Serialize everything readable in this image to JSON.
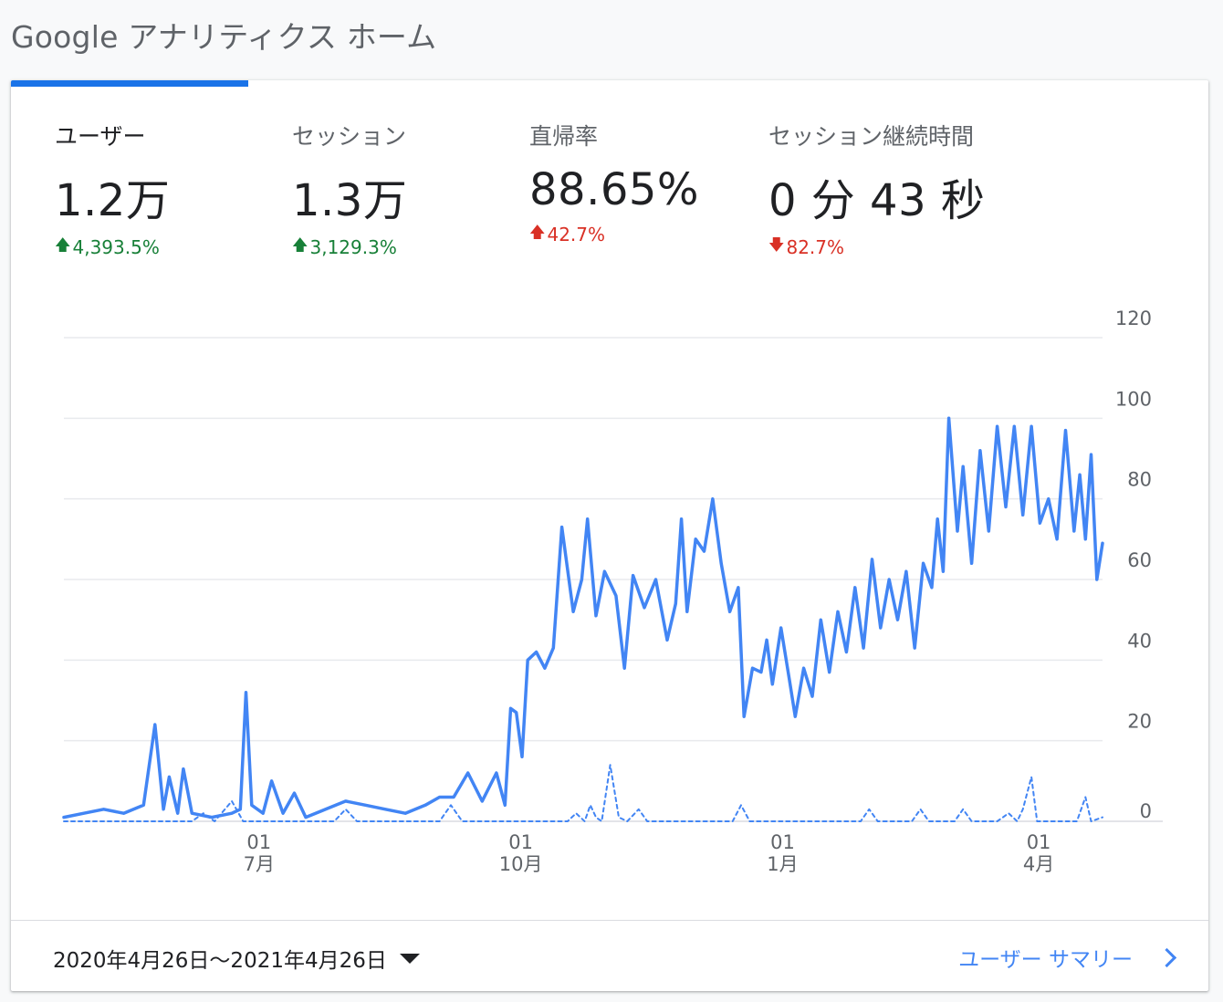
{
  "page": {
    "title": "Google アナリティクス ホーム"
  },
  "metrics": [
    {
      "label": "ユーザー",
      "value": "1.2万",
      "change": "4,393.5%",
      "direction": "up",
      "sentiment": "good"
    },
    {
      "label": "セッション",
      "value": "1.3万",
      "change": "3,129.3%",
      "direction": "up",
      "sentiment": "good"
    },
    {
      "label": "直帰率",
      "value": "88.65%",
      "change": "42.7%",
      "direction": "up",
      "sentiment": "bad"
    },
    {
      "label": "セッション継続時間",
      "value": "0 分 43 秒",
      "change": "82.7%",
      "direction": "down",
      "sentiment": "bad"
    }
  ],
  "colors": {
    "accent": "#1a73e8",
    "series": "#4285f4",
    "positive": "#188038",
    "negative": "#d93025"
  },
  "footer": {
    "date_range": "2020年4月26日～2021年4月26日",
    "summary_link": "ユーザー サマリー",
    "caret_icon": "dropdown-caret-icon",
    "chevron_icon": "chevron-right-icon"
  },
  "chart_data": {
    "type": "line",
    "x_range": [
      "2020-04-26",
      "2021-04-26"
    ],
    "ylim": [
      0,
      120
    ],
    "y_ticks": [
      0,
      20,
      40,
      60,
      80,
      100,
      120
    ],
    "y_axis_position": "right",
    "grid": true,
    "x_ticks": [
      {
        "date": "2020-07-01",
        "day": "01",
        "month": "7月"
      },
      {
        "date": "2020-10-01",
        "day": "01",
        "month": "10月"
      },
      {
        "date": "2021-01-01",
        "day": "01",
        "month": "1月"
      },
      {
        "date": "2021-04-01",
        "day": "01",
        "month": "4月"
      }
    ],
    "series": [
      {
        "style": "solid",
        "points": [
          [
            "2020-04-26",
            1
          ],
          [
            "2020-05-03",
            2
          ],
          [
            "2020-05-10",
            3
          ],
          [
            "2020-05-17",
            2
          ],
          [
            "2020-05-24",
            4
          ],
          [
            "2020-05-28",
            24
          ],
          [
            "2020-05-31",
            3
          ],
          [
            "2020-06-02",
            11
          ],
          [
            "2020-06-05",
            2
          ],
          [
            "2020-06-07",
            13
          ],
          [
            "2020-06-10",
            2
          ],
          [
            "2020-06-17",
            1
          ],
          [
            "2020-06-24",
            2
          ],
          [
            "2020-06-27",
            3
          ],
          [
            "2020-06-29",
            32
          ],
          [
            "2020-07-01",
            4
          ],
          [
            "2020-07-05",
            2
          ],
          [
            "2020-07-08",
            10
          ],
          [
            "2020-07-12",
            2
          ],
          [
            "2020-07-16",
            7
          ],
          [
            "2020-07-20",
            1
          ],
          [
            "2020-07-27",
            3
          ],
          [
            "2020-08-03",
            5
          ],
          [
            "2020-08-10",
            4
          ],
          [
            "2020-08-17",
            3
          ],
          [
            "2020-08-24",
            2
          ],
          [
            "2020-08-31",
            4
          ],
          [
            "2020-09-05",
            6
          ],
          [
            "2020-09-10",
            6
          ],
          [
            "2020-09-15",
            12
          ],
          [
            "2020-09-20",
            5
          ],
          [
            "2020-09-25",
            12
          ],
          [
            "2020-09-28",
            4
          ],
          [
            "2020-09-30",
            28
          ],
          [
            "2020-10-02",
            27
          ],
          [
            "2020-10-04",
            16
          ],
          [
            "2020-10-06",
            40
          ],
          [
            "2020-10-09",
            42
          ],
          [
            "2020-10-12",
            38
          ],
          [
            "2020-10-15",
            43
          ],
          [
            "2020-10-18",
            73
          ],
          [
            "2020-10-22",
            52
          ],
          [
            "2020-10-25",
            60
          ],
          [
            "2020-10-27",
            75
          ],
          [
            "2020-10-30",
            51
          ],
          [
            "2020-11-02",
            62
          ],
          [
            "2020-11-06",
            56
          ],
          [
            "2020-11-09",
            38
          ],
          [
            "2020-11-12",
            61
          ],
          [
            "2020-11-16",
            53
          ],
          [
            "2020-11-20",
            60
          ],
          [
            "2020-11-24",
            45
          ],
          [
            "2020-11-27",
            54
          ],
          [
            "2020-11-29",
            75
          ],
          [
            "2020-12-01",
            52
          ],
          [
            "2020-12-04",
            70
          ],
          [
            "2020-12-07",
            67
          ],
          [
            "2020-12-10",
            80
          ],
          [
            "2020-12-13",
            64
          ],
          [
            "2020-12-16",
            52
          ],
          [
            "2020-12-19",
            58
          ],
          [
            "2020-12-21",
            26
          ],
          [
            "2020-12-24",
            38
          ],
          [
            "2020-12-27",
            37
          ],
          [
            "2020-12-29",
            45
          ],
          [
            "2020-12-31",
            34
          ],
          [
            "2021-01-03",
            48
          ],
          [
            "2021-01-06",
            35
          ],
          [
            "2021-01-08",
            26
          ],
          [
            "2021-01-11",
            38
          ],
          [
            "2021-01-14",
            31
          ],
          [
            "2021-01-17",
            50
          ],
          [
            "2021-01-20",
            37
          ],
          [
            "2021-01-23",
            52
          ],
          [
            "2021-01-26",
            42
          ],
          [
            "2021-01-29",
            58
          ],
          [
            "2021-02-01",
            43
          ],
          [
            "2021-02-04",
            65
          ],
          [
            "2021-02-07",
            48
          ],
          [
            "2021-02-10",
            60
          ],
          [
            "2021-02-13",
            50
          ],
          [
            "2021-02-16",
            62
          ],
          [
            "2021-02-19",
            43
          ],
          [
            "2021-02-22",
            64
          ],
          [
            "2021-02-25",
            58
          ],
          [
            "2021-02-27",
            75
          ],
          [
            "2021-03-01",
            62
          ],
          [
            "2021-03-03",
            100
          ],
          [
            "2021-03-06",
            72
          ],
          [
            "2021-03-08",
            88
          ],
          [
            "2021-03-11",
            64
          ],
          [
            "2021-03-14",
            92
          ],
          [
            "2021-03-17",
            72
          ],
          [
            "2021-03-20",
            98
          ],
          [
            "2021-03-23",
            78
          ],
          [
            "2021-03-26",
            98
          ],
          [
            "2021-03-29",
            76
          ],
          [
            "2021-04-01",
            98
          ],
          [
            "2021-04-04",
            74
          ],
          [
            "2021-04-07",
            80
          ],
          [
            "2021-04-10",
            70
          ],
          [
            "2021-04-13",
            97
          ],
          [
            "2021-04-16",
            72
          ],
          [
            "2021-04-18",
            86
          ],
          [
            "2021-04-20",
            70
          ],
          [
            "2021-04-22",
            91
          ],
          [
            "2021-04-24",
            60
          ],
          [
            "2021-04-26",
            69
          ]
        ]
      },
      {
        "style": "dashed",
        "points": [
          [
            "2020-04-26",
            0
          ],
          [
            "2020-06-10",
            0
          ],
          [
            "2020-06-14",
            2
          ],
          [
            "2020-06-18",
            0
          ],
          [
            "2020-06-24",
            5
          ],
          [
            "2020-06-28",
            0
          ],
          [
            "2020-07-30",
            0
          ],
          [
            "2020-08-03",
            3
          ],
          [
            "2020-08-07",
            0
          ],
          [
            "2020-09-05",
            0
          ],
          [
            "2020-09-09",
            4
          ],
          [
            "2020-09-13",
            0
          ],
          [
            "2020-10-20",
            0
          ],
          [
            "2020-10-23",
            2
          ],
          [
            "2020-10-26",
            0
          ],
          [
            "2020-10-28",
            4
          ],
          [
            "2020-10-30",
            1
          ],
          [
            "2020-11-01",
            0
          ],
          [
            "2020-11-04",
            14
          ],
          [
            "2020-11-07",
            1
          ],
          [
            "2020-11-10",
            0
          ],
          [
            "2020-11-14",
            3
          ],
          [
            "2020-11-17",
            0
          ],
          [
            "2020-12-17",
            0
          ],
          [
            "2020-12-20",
            4
          ],
          [
            "2020-12-23",
            0
          ],
          [
            "2021-01-31",
            0
          ],
          [
            "2021-02-03",
            3
          ],
          [
            "2021-02-06",
            0
          ],
          [
            "2021-02-18",
            0
          ],
          [
            "2021-02-21",
            3
          ],
          [
            "2021-02-24",
            0
          ],
          [
            "2021-03-05",
            0
          ],
          [
            "2021-03-08",
            3
          ],
          [
            "2021-03-11",
            0
          ],
          [
            "2021-03-20",
            0
          ],
          [
            "2021-03-24",
            2
          ],
          [
            "2021-03-27",
            0
          ],
          [
            "2021-03-29",
            3
          ],
          [
            "2021-04-01",
            11
          ],
          [
            "2021-04-03",
            0
          ],
          [
            "2021-04-17",
            0
          ],
          [
            "2021-04-20",
            6
          ],
          [
            "2021-04-22",
            0
          ],
          [
            "2021-04-26",
            1
          ]
        ]
      }
    ]
  }
}
